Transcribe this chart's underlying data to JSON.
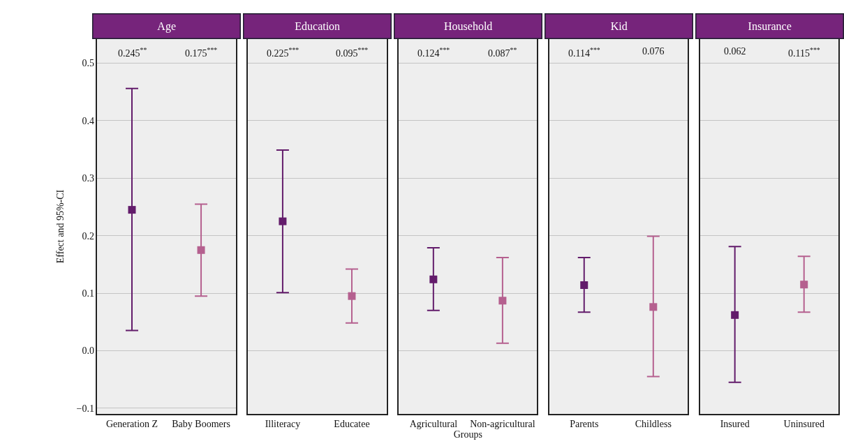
{
  "chart_data": [
    {
      "type": "scatter",
      "title": "Age",
      "ylabel": "Effect and 95%-CI",
      "categories": [
        "Generation Z",
        "Baby Boomers"
      ],
      "values": [
        0.245,
        0.175
      ],
      "errors": [
        [
          0.035,
          0.456
        ],
        [
          0.095,
          0.255
        ]
      ],
      "colors": [
        "#631c6b",
        "#b5608f"
      ],
      "annotations": [
        "0.245$^{**}$",
        "0.175$^{***}$"
      ],
      "ylim": [
        -0.11,
        0.542
      ],
      "yticks": [
        {
          "value": -0.1,
          "label": "−0.1"
        },
        {
          "value": 0,
          "label": "0.0"
        },
        0.1,
        0.2,
        0.3,
        0.4,
        0.5
      ],
      "grid": "y",
      "marker": "square"
    },
    {
      "type": "scatter",
      "title": "Education",
      "categories": [
        "Illiteracy",
        "Educatee"
      ],
      "values": [
        0.225,
        0.095
      ],
      "errors": [
        [
          0.101,
          0.349
        ],
        [
          0.048,
          0.142
        ]
      ],
      "colors": [
        "#631c6b",
        "#b5608f"
      ],
      "annotations": [
        "0.225$^{***}$",
        "0.095$^{***}$"
      ],
      "ylim": [
        -0.11,
        0.542
      ],
      "yticks": [
        {
          "value": 0,
          "label": null
        },
        {
          "value": 0.1,
          "label": null
        },
        {
          "value": 0.2,
          "label": null
        },
        {
          "value": 0.3,
          "label": null
        },
        {
          "value": 0.4,
          "label": null
        },
        {
          "value": 0.5,
          "label": null
        }
      ],
      "grid": "y",
      "marker": "square",
      "tick_labels": "x"
    },
    {
      "type": "scatter",
      "title": "Household",
      "xlabel": "Groups",
      "categories": [
        "Agricultural",
        "Non-agricultural"
      ],
      "values": [
        0.124,
        0.087
      ],
      "errors": [
        [
          0.07,
          0.179
        ],
        [
          0.013,
          0.162
        ]
      ],
      "colors": [
        "#631c6b",
        "#b5608f"
      ],
      "annotations": [
        "0.124$^{***}$",
        "0.087$^{**}$"
      ],
      "ylim": [
        -0.11,
        0.542
      ],
      "yticks": [
        {
          "value": 0,
          "label": null
        },
        {
          "value": 0.1,
          "label": null
        },
        {
          "value": 0.2,
          "label": null
        },
        {
          "value": 0.3,
          "label": null
        },
        {
          "value": 0.4,
          "label": null
        },
        {
          "value": 0.5,
          "label": null
        }
      ],
      "grid": "y",
      "marker": "square",
      "tick_labels": "x"
    },
    {
      "type": "scatter",
      "title": "Kid",
      "categories": [
        "Parents",
        "Childless"
      ],
      "values": [
        0.114,
        0.076
      ],
      "errors": [
        [
          0.067,
          0.162
        ],
        [
          -0.045,
          0.199
        ]
      ],
      "colors": [
        "#631c6b",
        "#b5608f"
      ],
      "annotations": [
        "0.114$^{***}$",
        "0.076"
      ],
      "ylim": [
        -0.11,
        0.542
      ],
      "yticks": [
        {
          "value": 0,
          "label": null
        },
        {
          "value": 0.1,
          "label": null
        },
        {
          "value": 0.2,
          "label": null
        },
        {
          "value": 0.3,
          "label": null
        },
        {
          "value": 0.4,
          "label": null
        },
        {
          "value": 0.5,
          "label": null
        }
      ],
      "grid": "y",
      "marker": "square",
      "tick_labels": "x"
    },
    {
      "type": "scatter",
      "title": "Insurance",
      "categories": [
        "Insured",
        "Uninsured"
      ],
      "values": [
        0.062,
        0.115
      ],
      "errors": [
        [
          -0.055,
          0.181
        ],
        [
          0.067,
          0.164
        ]
      ],
      "colors": [
        "#631c6b",
        "#b5608f"
      ],
      "annotations": [
        "0.062",
        "0.115$^{***}$"
      ],
      "ylim": [
        -0.11,
        0.542
      ],
      "yticks": [
        {
          "value": 0,
          "label": null
        },
        {
          "value": 0.1,
          "label": null
        },
        {
          "value": 0.2,
          "label": null
        },
        {
          "value": 0.3,
          "label": null
        },
        {
          "value": 0.4,
          "label": null
        },
        {
          "value": 0.5,
          "label": null
        }
      ],
      "grid": "y",
      "marker": "square",
      "tick_labels": "x"
    }
  ]
}
